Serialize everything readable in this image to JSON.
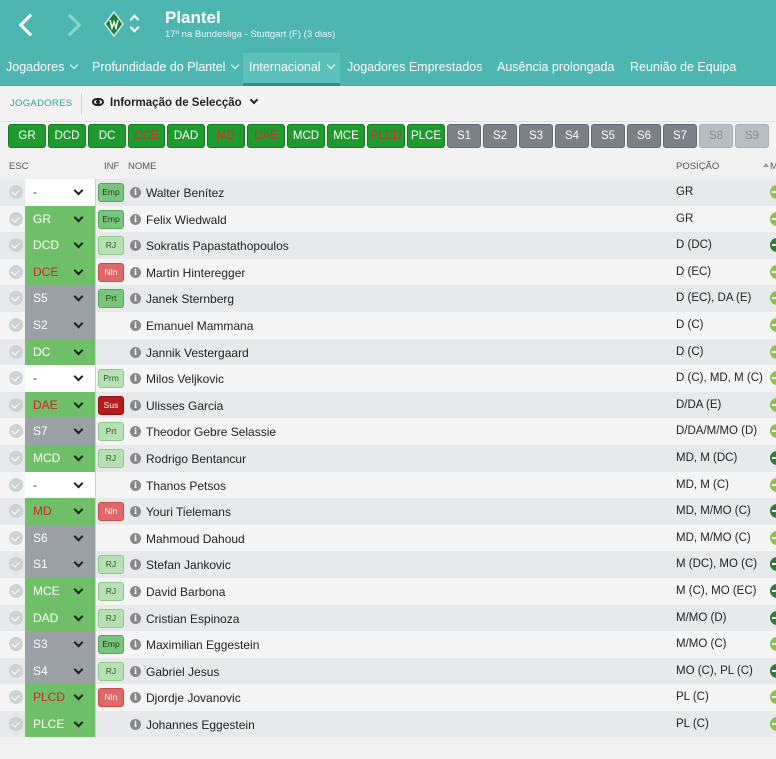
{
  "header": {
    "title": "Plantel",
    "subtitle": "17º na Bundesliga - Stuttgart (F) (3 dias)"
  },
  "tabs": [
    {
      "label": "Jogadores",
      "dropdown": true,
      "active": false
    },
    {
      "label": "Profundidade do Plantel",
      "dropdown": true,
      "active": false
    },
    {
      "label": "Internacional",
      "dropdown": true,
      "active": true
    },
    {
      "label": "Jogadores Emprestados",
      "dropdown": false,
      "active": false
    },
    {
      "label": "Ausência prolongada",
      "dropdown": false,
      "active": false
    },
    {
      "label": "Reunião de Equipa",
      "dropdown": false,
      "active": false
    }
  ],
  "subbar": {
    "section_label": "JOGADORES",
    "view_label": "Informação de Selecção"
  },
  "chips": [
    {
      "label": "GR",
      "style": "green"
    },
    {
      "label": "DCD",
      "style": "green"
    },
    {
      "label": "DC",
      "style": "green"
    },
    {
      "label": "DCE",
      "style": "green-red"
    },
    {
      "label": "DAD",
      "style": "green"
    },
    {
      "label": "MD",
      "style": "green-red"
    },
    {
      "label": "DAE",
      "style": "green-red"
    },
    {
      "label": "MCD",
      "style": "green"
    },
    {
      "label": "MCE",
      "style": "green"
    },
    {
      "label": "PLCD",
      "style": "green-red"
    },
    {
      "label": "PLCE",
      "style": "green"
    },
    {
      "label": "S1",
      "style": "grey"
    },
    {
      "label": "S2",
      "style": "grey"
    },
    {
      "label": "S3",
      "style": "grey"
    },
    {
      "label": "S4",
      "style": "grey"
    },
    {
      "label": "S5",
      "style": "grey"
    },
    {
      "label": "S6",
      "style": "grey"
    },
    {
      "label": "S7",
      "style": "grey"
    },
    {
      "label": "S8",
      "style": "disabled"
    },
    {
      "label": "S9",
      "style": "disabled"
    }
  ],
  "columns": {
    "esc": "ESC",
    "inf": "INF",
    "nome": "NOME",
    "posicao": "POSIÇÃO",
    "extra": "M"
  },
  "players": [
    {
      "sel": "-",
      "sel_style": "blank",
      "inf": "Emp",
      "inf_style": "green",
      "name": "Walter Benítez",
      "pos": "GR",
      "dot": "lime"
    },
    {
      "sel": "GR",
      "sel_style": "green",
      "inf": "Emp",
      "inf_style": "green",
      "name": "Felix Wiedwald",
      "pos": "GR",
      "dot": "lime"
    },
    {
      "sel": "DCD",
      "sel_style": "green",
      "inf": "RJ",
      "inf_style": "light",
      "name": "Sokratis Papastathopoulos",
      "pos": "D (DC)",
      "dot": "dark"
    },
    {
      "sel": "DCE",
      "sel_style": "green-red",
      "inf": "Nln",
      "inf_style": "red",
      "name": "Martin Hinteregger",
      "pos": "D (EC)",
      "dot": "lime"
    },
    {
      "sel": "S5",
      "sel_style": "grey",
      "inf": "Prt",
      "inf_style": "green",
      "name": "Janek Sternberg",
      "pos": "D (EC), DA (E)",
      "dot": "lime"
    },
    {
      "sel": "S2",
      "sel_style": "grey",
      "inf": "",
      "inf_style": "",
      "name": "Emanuel Mammana",
      "pos": "D (C)",
      "dot": "lime"
    },
    {
      "sel": "DC",
      "sel_style": "green",
      "inf": "",
      "inf_style": "",
      "name": "Jannik Vestergaard",
      "pos": "D (C)",
      "dot": "lime"
    },
    {
      "sel": "-",
      "sel_style": "blank",
      "inf": "Prm",
      "inf_style": "light",
      "name": "Milos Veljkovic",
      "pos": "D (C), MD, M (C)",
      "dot": "lime"
    },
    {
      "sel": "DAE",
      "sel_style": "green-red",
      "inf": "Sus",
      "inf_style": "darkred",
      "name": "Ulisses Garcia",
      "pos": "D/DA (E)",
      "dot": "lime"
    },
    {
      "sel": "S7",
      "sel_style": "grey",
      "inf": "Prt",
      "inf_style": "light",
      "name": "Theodor Gebre Selassie",
      "pos": "D/DA/M/MO (D)",
      "dot": "lime"
    },
    {
      "sel": "MCD",
      "sel_style": "green",
      "inf": "RJ",
      "inf_style": "light",
      "name": "Rodrigo Bentancur",
      "pos": "MD, M (DC)",
      "dot": "dark"
    },
    {
      "sel": "-",
      "sel_style": "blank",
      "inf": "",
      "inf_style": "",
      "name": "Thanos Petsos",
      "pos": "MD, M (C)",
      "dot": "lime"
    },
    {
      "sel": "MD",
      "sel_style": "green-red",
      "inf": "Nln",
      "inf_style": "red",
      "name": "Youri Tielemans",
      "pos": "MD, M/MO (C)",
      "dot": "dark"
    },
    {
      "sel": "S6",
      "sel_style": "grey",
      "inf": "",
      "inf_style": "",
      "name": "Mahmoud Dahoud",
      "pos": "MD, M/MO (C)",
      "dot": "lime"
    },
    {
      "sel": "S1",
      "sel_style": "grey",
      "inf": "RJ",
      "inf_style": "light",
      "name": "Stefan Jankovic",
      "pos": "M (DC), MO (C)",
      "dot": "dark"
    },
    {
      "sel": "MCE",
      "sel_style": "green",
      "inf": "RJ",
      "inf_style": "light",
      "name": "David Barbona",
      "pos": "M (C), MO (EC)",
      "dot": "dark"
    },
    {
      "sel": "DAD",
      "sel_style": "green",
      "inf": "RJ",
      "inf_style": "light",
      "name": "Cristian Espinoza",
      "pos": "M/MO (D)",
      "dot": "dark"
    },
    {
      "sel": "S3",
      "sel_style": "grey",
      "inf": "Emp",
      "inf_style": "green",
      "name": "Maximilian Eggestein",
      "pos": "M/MO (C)",
      "dot": "lime"
    },
    {
      "sel": "S4",
      "sel_style": "grey",
      "inf": "RJ",
      "inf_style": "light",
      "name": "Gabriel Jesus",
      "pos": "MO (C), PL (C)",
      "dot": "dark"
    },
    {
      "sel": "PLCD",
      "sel_style": "green-red",
      "inf": "Nln",
      "inf_style": "red",
      "name": "Djordje Jovanovic",
      "pos": "PL (C)",
      "dot": "lime"
    },
    {
      "sel": "PLCE",
      "sel_style": "green",
      "inf": "",
      "inf_style": "",
      "name": "Johannes Eggestein",
      "pos": "PL (C)",
      "dot": "lime"
    }
  ],
  "icons": {
    "back": "chevron-left-icon",
    "forward": "chevron-right-icon",
    "badge": "club-crest-icon",
    "switch": "up-down-chevron-icon",
    "eye": "eye-icon",
    "info": "info-icon"
  }
}
